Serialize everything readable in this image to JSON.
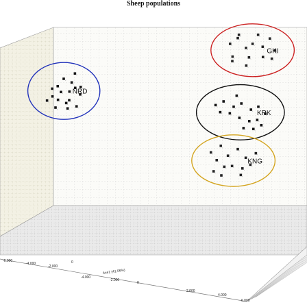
{
  "chart_data": {
    "type": "scatter",
    "projection": "3d",
    "title": "Sheep populations",
    "axes": {
      "x": {
        "label": "Axe1 (41.06%)",
        "ticks": [
          "-4.000",
          "-2.000",
          "0",
          "2.000",
          "4.000",
          "6.000"
        ]
      },
      "floor_ticks": [
        "-6.000",
        "-4.000",
        "-2.000",
        "0"
      ]
    },
    "series": [
      {
        "name": "NRD",
        "color": "#2233bb",
        "points": [
          {
            "x": -5.6,
            "y": 1.0,
            "z": 0.2
          },
          {
            "x": -5.4,
            "y": 0.8,
            "z": 0.6
          },
          {
            "x": -5.2,
            "y": 1.2,
            "z": 0.1
          },
          {
            "x": -5.0,
            "y": 0.7,
            "z": 0.4
          },
          {
            "x": -5.3,
            "y": 1.5,
            "z": -0.3
          },
          {
            "x": -4.9,
            "y": 1.1,
            "z": 0.8
          },
          {
            "x": -4.8,
            "y": 0.9,
            "z": -0.1
          },
          {
            "x": -4.6,
            "y": 1.3,
            "z": 0.5
          },
          {
            "x": -5.7,
            "y": 1.2,
            "z": 0.9
          },
          {
            "x": -4.5,
            "y": 0.6,
            "z": 0.2
          },
          {
            "x": -5.1,
            "y": 1.7,
            "z": 0.3
          },
          {
            "x": -4.7,
            "y": 1.6,
            "z": 0.0
          },
          {
            "x": -5.5,
            "y": 0.5,
            "z": 0.5
          },
          {
            "x": -4.4,
            "y": 1.0,
            "z": 0.7
          },
          {
            "x": -5.8,
            "y": 0.9,
            "z": -0.2
          },
          {
            "x": -4.3,
            "y": 1.4,
            "z": 0.1
          },
          {
            "x": -5.0,
            "y": 0.4,
            "z": 0.9
          },
          {
            "x": -4.6,
            "y": 1.9,
            "z": 0.4
          }
        ]
      },
      {
        "name": "GKI",
        "color": "#cc2222",
        "points": [
          {
            "x": 2.4,
            "y": 3.0,
            "z": 1.0
          },
          {
            "x": 2.8,
            "y": 3.3,
            "z": 0.6
          },
          {
            "x": 3.1,
            "y": 2.8,
            "z": 1.2
          },
          {
            "x": 3.5,
            "y": 3.1,
            "z": 0.4
          },
          {
            "x": 3.9,
            "y": 2.9,
            "z": 0.9
          },
          {
            "x": 4.2,
            "y": 3.2,
            "z": 1.1
          },
          {
            "x": 2.6,
            "y": 2.6,
            "z": 0.3
          },
          {
            "x": 3.3,
            "y": 2.5,
            "z": 0.7
          },
          {
            "x": 4.0,
            "y": 2.6,
            "z": 0.2
          },
          {
            "x": 4.5,
            "y": 2.8,
            "z": 0.6
          },
          {
            "x": 2.9,
            "y": 3.5,
            "z": 0.2
          },
          {
            "x": 3.7,
            "y": 3.4,
            "z": 0.8
          },
          {
            "x": 2.5,
            "y": 2.3,
            "z": 1.0
          },
          {
            "x": 3.2,
            "y": 2.2,
            "z": 0.5
          },
          {
            "x": 4.3,
            "y": 2.4,
            "z": 1.0
          }
        ]
      },
      {
        "name": "KRK",
        "color": "#111111",
        "points": [
          {
            "x": 1.8,
            "y": 0.6,
            "z": 0.5
          },
          {
            "x": 2.2,
            "y": 0.8,
            "z": 0.2
          },
          {
            "x": 2.6,
            "y": 0.5,
            "z": 0.7
          },
          {
            "x": 3.0,
            "y": 0.7,
            "z": 0.3
          },
          {
            "x": 3.4,
            "y": 0.4,
            "z": 0.6
          },
          {
            "x": 3.8,
            "y": 0.6,
            "z": 0.1
          },
          {
            "x": 2.4,
            "y": 0.2,
            "z": 0.9
          },
          {
            "x": 2.9,
            "y": 0.1,
            "z": 0.4
          },
          {
            "x": 3.3,
            "y": -0.1,
            "z": 0.8
          },
          {
            "x": 3.7,
            "y": 0.0,
            "z": 0.5
          },
          {
            "x": 4.1,
            "y": 0.3,
            "z": 0.2
          },
          {
            "x": 2.0,
            "y": 0.3,
            "z": 0.6
          },
          {
            "x": 3.1,
            "y": -0.3,
            "z": 0.3
          },
          {
            "x": 3.5,
            "y": -0.4,
            "z": 0.7
          },
          {
            "x": 2.7,
            "y": 0.9,
            "z": 1.0
          },
          {
            "x": 3.9,
            "y": -0.2,
            "z": 0.4
          }
        ]
      },
      {
        "name": "KNG",
        "color": "#d4a520",
        "points": [
          {
            "x": 1.6,
            "y": -1.3,
            "z": 0.4
          },
          {
            "x": 2.0,
            "y": -1.1,
            "z": 0.8
          },
          {
            "x": 2.4,
            "y": -1.4,
            "z": 0.2
          },
          {
            "x": 2.8,
            "y": -1.2,
            "z": 0.6
          },
          {
            "x": 3.2,
            "y": -1.5,
            "z": 0.3
          },
          {
            "x": 1.8,
            "y": -1.7,
            "z": 0.9
          },
          {
            "x": 2.2,
            "y": -1.9,
            "z": 0.5
          },
          {
            "x": 2.6,
            "y": -1.8,
            "z": 0.1
          },
          {
            "x": 3.0,
            "y": -2.0,
            "z": 0.7
          },
          {
            "x": 3.4,
            "y": -1.8,
            "z": 0.4
          },
          {
            "x": 2.1,
            "y": -2.2,
            "z": 0.2
          },
          {
            "x": 2.9,
            "y": -2.3,
            "z": 0.9
          },
          {
            "x": 1.7,
            "y": -2.1,
            "z": 0.6
          },
          {
            "x": 3.6,
            "y": -1.4,
            "z": 0.8
          }
        ]
      }
    ]
  }
}
